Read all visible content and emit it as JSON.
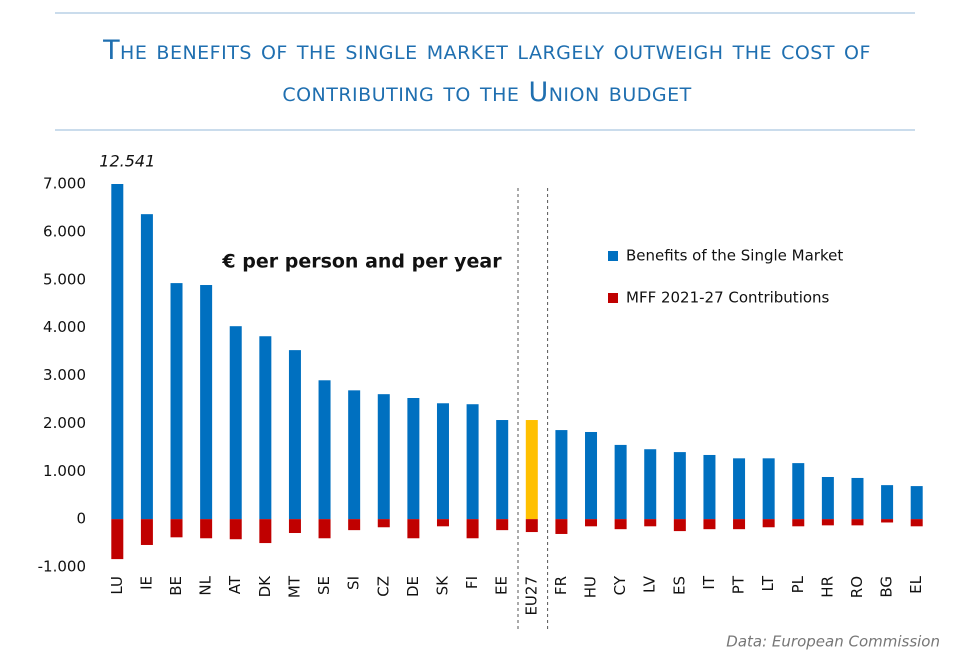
{
  "chart_data": {
    "type": "bar",
    "title": "The benefits of the single market largely outweigh the cost of contributing to the Union budget",
    "annotation": "€ per person and per year",
    "source": "Data: European Commission",
    "categories": [
      "LU",
      "IE",
      "BE",
      "NL",
      "AT",
      "DK",
      "MT",
      "SE",
      "SI",
      "CZ",
      "DE",
      "SK",
      "FI",
      "EE",
      "EU27",
      "FR",
      "HU",
      "CY",
      "LV",
      "ES",
      "IT",
      "PT",
      "LT",
      "PL",
      "HR",
      "RO",
      "BG",
      "EL"
    ],
    "series": [
      {
        "name": "Benefits of the Single Market",
        "color": "#0070c0",
        "colors": [
          "#0070c0",
          "#0070c0",
          "#0070c0",
          "#0070c0",
          "#0070c0",
          "#0070c0",
          "#0070c0",
          "#0070c0",
          "#0070c0",
          "#0070c0",
          "#0070c0",
          "#0070c0",
          "#0070c0",
          "#0070c0",
          "#ffc000",
          "#0070c0",
          "#0070c0",
          "#0070c0",
          "#0070c0",
          "#0070c0",
          "#0070c0",
          "#0070c0",
          "#0070c0",
          "#0070c0",
          "#0070c0",
          "#0070c0",
          "#0070c0",
          "#0070c0"
        ],
        "values": [
          12541,
          6370,
          4930,
          4890,
          4030,
          3820,
          3530,
          2900,
          2690,
          2610,
          2530,
          2420,
          2400,
          2070,
          2070,
          1860,
          1820,
          1550,
          1460,
          1400,
          1340,
          1270,
          1270,
          1170,
          880,
          860,
          710,
          690
        ],
        "value_labels": [
          "12.541",
          null,
          null,
          null,
          null,
          null,
          null,
          null,
          null,
          null,
          null,
          null,
          null,
          null,
          null,
          null,
          null,
          null,
          null,
          null,
          null,
          null,
          null,
          null,
          null,
          null,
          null,
          null
        ]
      },
      {
        "name": "MFF 2021-27 Contributions",
        "color": "#c00000",
        "values": [
          -835,
          -540,
          -380,
          -400,
          -420,
          -500,
          -290,
          -400,
          -230,
          -170,
          -400,
          -150,
          -400,
          -230,
          -270,
          -310,
          -150,
          -210,
          -150,
          -250,
          -210,
          -210,
          -170,
          -150,
          -130,
          -130,
          -70,
          -150
        ]
      }
    ],
    "highlight_index": 14,
    "ylim": [
      -1000,
      7000
    ],
    "yticks": [
      {
        "value": -1000,
        "label": "-1.000"
      },
      0,
      {
        "value": 1000,
        "label": "1.000"
      },
      {
        "value": 2000,
        "label": "2.000"
      },
      {
        "value": 3000,
        "label": "3.000"
      },
      {
        "value": 4000,
        "label": "4.000"
      },
      {
        "value": 5000,
        "label": "5.000"
      },
      {
        "value": 6000,
        "label": "6.000"
      },
      {
        "value": 7000,
        "label": "7.000"
      }
    ],
    "grid": false
  }
}
